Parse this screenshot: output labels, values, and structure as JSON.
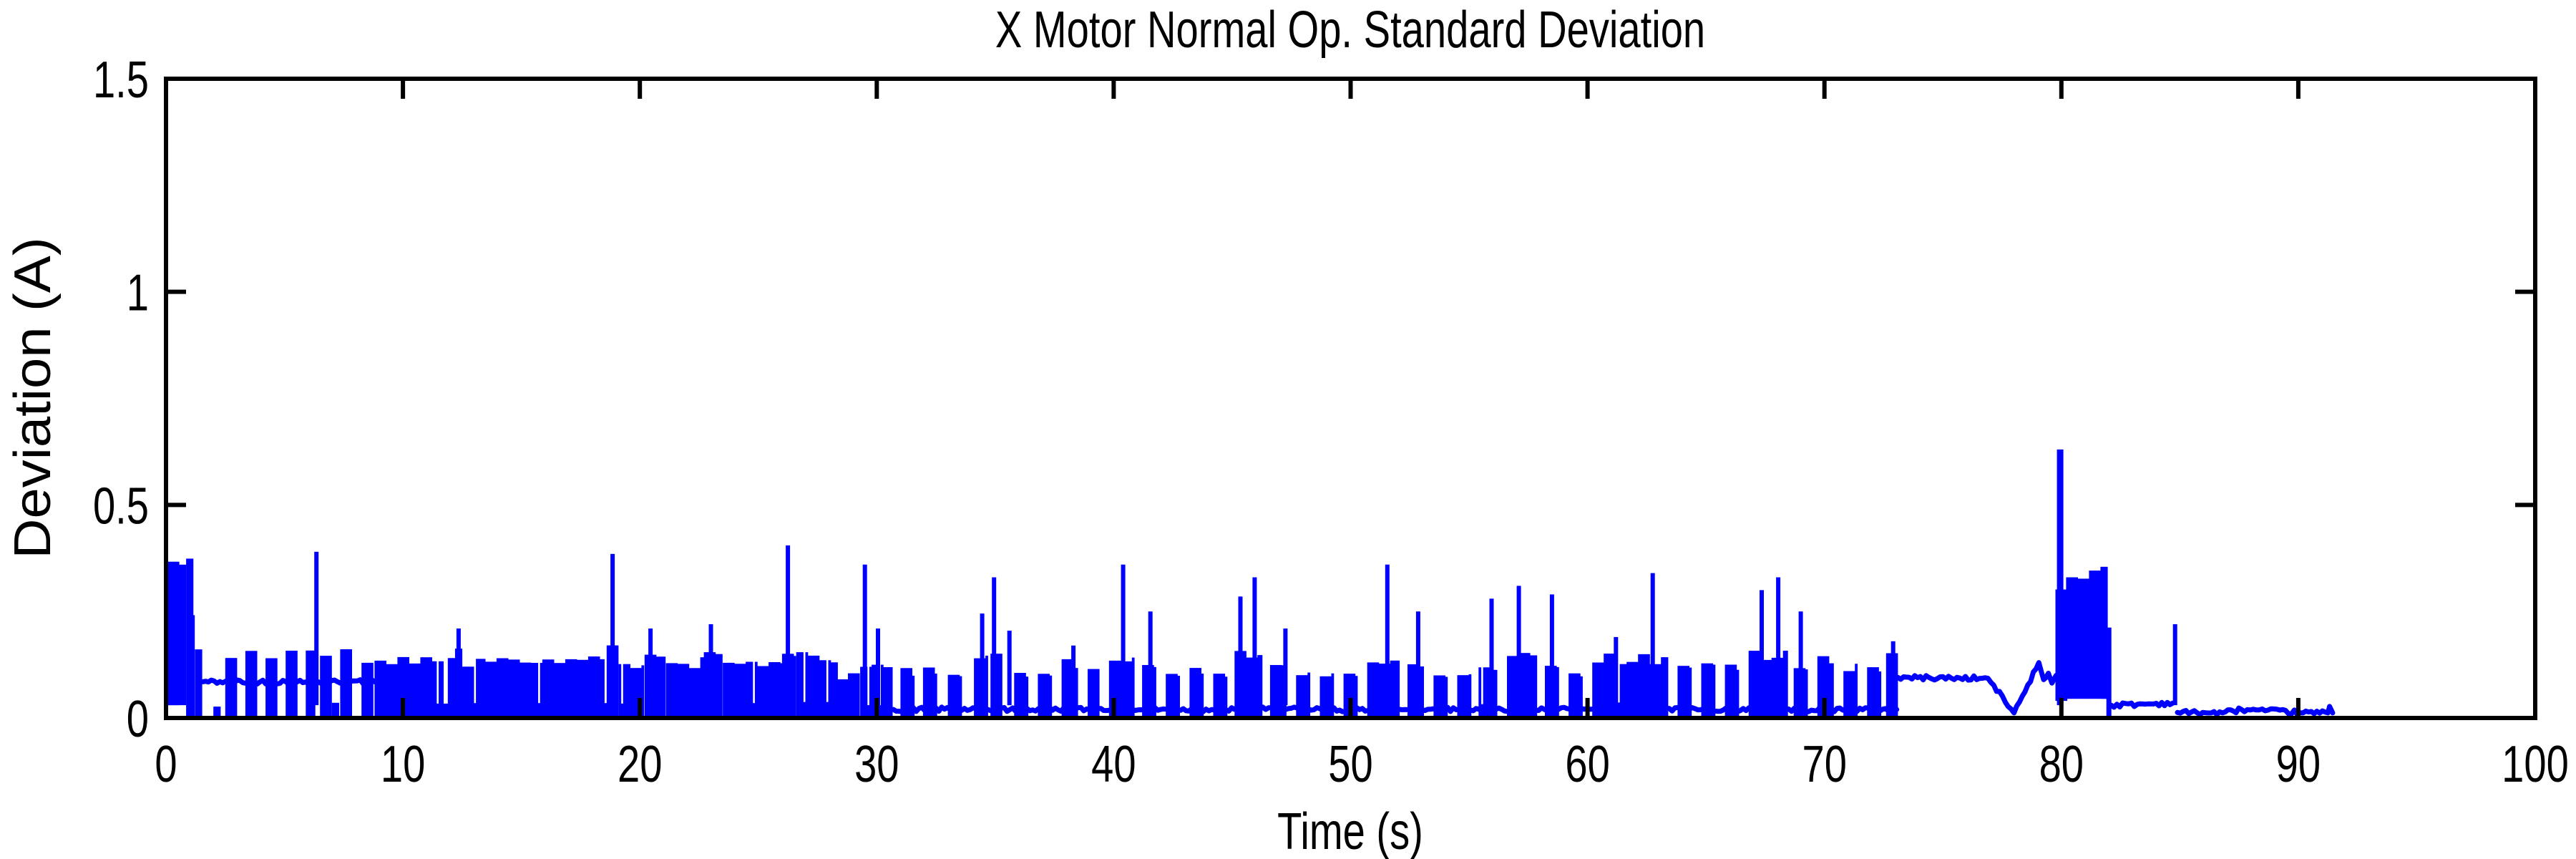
{
  "figure": {
    "background": "#ffffff"
  },
  "chart_data": {
    "type": "line",
    "title": "X Motor Normal Op. Standard Deviation",
    "xlabel": "Time (s)",
    "ylabel": "Deviation (A)",
    "xlim": [
      0,
      100
    ],
    "ylim": [
      0,
      1.5
    ],
    "grid": false,
    "legend": null,
    "box": true,
    "tick_direction": "in",
    "line_color": "#0000ff",
    "axis_color": "#000000",
    "xticks": [
      {
        "v": 0,
        "label": "0"
      },
      {
        "v": 10,
        "label": "10"
      },
      {
        "v": 20,
        "label": "20"
      },
      {
        "v": 30,
        "label": "30"
      },
      {
        "v": 40,
        "label": "40"
      },
      {
        "v": 50,
        "label": "50"
      },
      {
        "v": 60,
        "label": "60"
      },
      {
        "v": 70,
        "label": "70"
      },
      {
        "v": 80,
        "label": "80"
      },
      {
        "v": 90,
        "label": "90"
      },
      {
        "v": 100,
        "label": "100"
      }
    ],
    "yticks": [
      {
        "v": 0,
        "label": "0"
      },
      {
        "v": 0.5,
        "label": "0.5"
      },
      {
        "v": 1,
        "label": "1"
      },
      {
        "v": 1.5,
        "label": "1.5"
      }
    ],
    "series_name": "x-motor-normal-op-standard-deviation",
    "signal": {
      "bands": [
        [
          0.06,
          0.85,
          0.03,
          0.4
        ],
        [
          0.85,
          1.1,
          0.0,
          0.4
        ],
        [
          1.1,
          1.22,
          0.0,
          0.24
        ],
        [
          1.22,
          1.55,
          0.0,
          0.185
        ],
        [
          2.0,
          2.3,
          0.0,
          0.03
        ],
        [
          2.5,
          2.95,
          0.0,
          0.155
        ],
        [
          3.35,
          3.8,
          0.0,
          0.16
        ],
        [
          4.2,
          4.65,
          0.0,
          0.15
        ],
        [
          5.05,
          5.5,
          0.0,
          0.16
        ],
        [
          5.9,
          6.25,
          0.0,
          0.15
        ],
        [
          6.5,
          6.95,
          0.0,
          0.155
        ],
        [
          7.0,
          7.3,
          0.0,
          0.035
        ],
        [
          7.35,
          7.85,
          0.0,
          0.16
        ],
        [
          8.25,
          8.75,
          0.0,
          0.15
        ],
        [
          8.8,
          12.2,
          0.0,
          0.135
        ],
        [
          12.2,
          12.5,
          0.0,
          0.165
        ],
        [
          12.5,
          18.6,
          0.0,
          0.14
        ],
        [
          18.6,
          19.1,
          0.0,
          0.17
        ],
        [
          19.1,
          20.2,
          0.0,
          0.135
        ],
        [
          20.2,
          21.1,
          0.0,
          0.16
        ],
        [
          21.1,
          22.7,
          0.0,
          0.135
        ],
        [
          22.7,
          23.5,
          0.0,
          0.16
        ],
        [
          23.5,
          26.0,
          0.0,
          0.14
        ],
        [
          26.0,
          26.6,
          0.0,
          0.165
        ],
        [
          26.6,
          28.3,
          0.0,
          0.15
        ],
        [
          28.3,
          29.3,
          0.0,
          0.105
        ],
        [
          29.3,
          30.7,
          0.0,
          0.12
        ],
        [
          31.0,
          31.6,
          0.0,
          0.115
        ],
        [
          31.95,
          32.55,
          0.0,
          0.115
        ],
        [
          33.0,
          33.6,
          0.0,
          0.105
        ],
        [
          34.1,
          34.7,
          0.0,
          0.16
        ],
        [
          34.8,
          35.3,
          0.0,
          0.145
        ],
        [
          35.8,
          36.4,
          0.0,
          0.1
        ],
        [
          36.8,
          37.4,
          0.0,
          0.115
        ],
        [
          37.8,
          38.5,
          0.0,
          0.135
        ],
        [
          38.9,
          39.4,
          0.0,
          0.11
        ],
        [
          39.8,
          40.9,
          0.0,
          0.145
        ],
        [
          41.2,
          41.8,
          0.0,
          0.12
        ],
        [
          42.2,
          42.8,
          0.0,
          0.105
        ],
        [
          43.2,
          43.8,
          0.0,
          0.115
        ],
        [
          44.2,
          44.8,
          0.0,
          0.11
        ],
        [
          45.1,
          46.3,
          0.0,
          0.15
        ],
        [
          46.6,
          47.3,
          0.0,
          0.12
        ],
        [
          47.7,
          48.3,
          0.0,
          0.105
        ],
        [
          48.7,
          49.3,
          0.0,
          0.11
        ],
        [
          49.7,
          50.3,
          0.0,
          0.105
        ],
        [
          50.7,
          52.1,
          0.0,
          0.145
        ],
        [
          52.4,
          53.1,
          0.0,
          0.12
        ],
        [
          53.5,
          54.1,
          0.0,
          0.105
        ],
        [
          54.5,
          55.1,
          0.0,
          0.11
        ],
        [
          55.4,
          56.2,
          0.0,
          0.13
        ],
        [
          56.6,
          57.9,
          0.0,
          0.15
        ],
        [
          58.2,
          58.8,
          0.0,
          0.13
        ],
        [
          59.2,
          59.8,
          0.0,
          0.105
        ],
        [
          60.2,
          63.4,
          0.0,
          0.145
        ],
        [
          63.8,
          64.4,
          0.0,
          0.12
        ],
        [
          64.8,
          65.4,
          0.0,
          0.13
        ],
        [
          65.8,
          66.4,
          0.0,
          0.12
        ],
        [
          66.8,
          68.4,
          0.0,
          0.15
        ],
        [
          68.7,
          69.3,
          0.0,
          0.13
        ],
        [
          69.7,
          70.4,
          0.0,
          0.14
        ],
        [
          70.8,
          71.4,
          0.0,
          0.12
        ],
        [
          71.8,
          72.4,
          0.0,
          0.12
        ],
        [
          72.6,
          73.1,
          0.0,
          0.165
        ],
        [
          79.75,
          80.2,
          0.04,
          0.33
        ],
        [
          80.2,
          81.9,
          0.045,
          0.36
        ],
        [
          81.9,
          82.1,
          0.0,
          0.205
        ]
      ],
      "spikes": [
        [
          6.35,
          0.39
        ],
        [
          12.35,
          0.21
        ],
        [
          18.85,
          0.385
        ],
        [
          20.45,
          0.21
        ],
        [
          23.0,
          0.22
        ],
        [
          26.25,
          0.405
        ],
        [
          29.5,
          0.36
        ],
        [
          30.05,
          0.21
        ],
        [
          34.45,
          0.245
        ],
        [
          34.95,
          0.33
        ],
        [
          35.6,
          0.205
        ],
        [
          38.3,
          0.17
        ],
        [
          40.4,
          0.36
        ],
        [
          41.55,
          0.25
        ],
        [
          45.35,
          0.285
        ],
        [
          45.95,
          0.33
        ],
        [
          47.25,
          0.21
        ],
        [
          51.55,
          0.36
        ],
        [
          52.85,
          0.25
        ],
        [
          55.95,
          0.28
        ],
        [
          57.1,
          0.31
        ],
        [
          58.5,
          0.29
        ],
        [
          61.2,
          0.19
        ],
        [
          62.75,
          0.34
        ],
        [
          67.35,
          0.3
        ],
        [
          68.05,
          0.33
        ],
        [
          69.0,
          0.25
        ],
        [
          72.9,
          0.18
        ],
        [
          79.95,
          0.63
        ],
        [
          84.8,
          0.22
        ]
      ],
      "trace_segments": [
        [
          [
            1.55,
            0.085
          ],
          [
            8.8,
            0.085
          ]
        ],
        [
          [
            30.7,
            0.02
          ],
          [
            73.05,
            0.02
          ]
        ],
        [
          [
            73.1,
            0.095
          ],
          [
            76.9,
            0.093
          ],
          [
            78.0,
            0.012
          ],
          [
            79.05,
            0.13
          ],
          [
            79.25,
            0.09
          ],
          [
            79.45,
            0.105
          ],
          [
            79.6,
            0.082
          ],
          [
            79.78,
            0.1
          ]
        ],
        [
          [
            82.1,
            0.03
          ],
          [
            83.2,
            0.032
          ],
          [
            84.7,
            0.035
          ]
        ],
        [
          [
            84.9,
            0.013
          ],
          [
            86.8,
            0.012
          ],
          [
            87.6,
            0.02
          ],
          [
            88.6,
            0.017
          ],
          [
            90.2,
            0.012
          ],
          [
            91.25,
            0.012
          ],
          [
            91.32,
            0.027
          ],
          [
            91.45,
            0.012
          ]
        ]
      ]
    }
  }
}
